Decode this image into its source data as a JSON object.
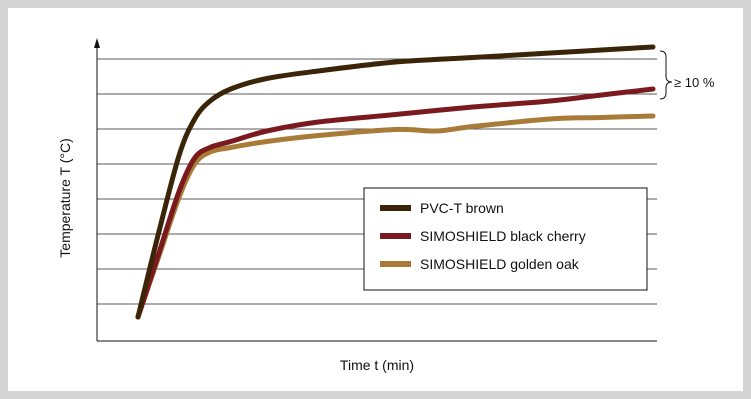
{
  "chart_data": {
    "type": "line",
    "title": "",
    "xlabel": "Time t (min)",
    "ylabel": "Temperature T (°C)",
    "x_ticks_shown": false,
    "y_ticks_shown": false,
    "grid": "horizontal",
    "legend_position": "lower-right",
    "annotation": "≥ 10 %",
    "series": [
      {
        "name": "PVC-T brown",
        "color": "#3a2508",
        "x": [
          0,
          0.04,
          0.08,
          0.11,
          0.14,
          0.18,
          0.25,
          0.35,
          0.5,
          0.65,
          0.8,
          0.9,
          1.0
        ],
        "y": [
          0.2,
          3.0,
          5.6,
          6.8,
          7.4,
          7.8,
          8.15,
          8.4,
          8.7,
          8.85,
          9.0,
          9.1,
          9.2
        ]
      },
      {
        "name": "SIMOSHIELD black cherry",
        "color": "#7a1a1f",
        "x": [
          0,
          0.04,
          0.08,
          0.11,
          0.14,
          0.18,
          0.25,
          0.35,
          0.5,
          0.65,
          0.8,
          0.9,
          1.0
        ],
        "y": [
          0.2,
          2.3,
          4.4,
          5.5,
          5.85,
          6.05,
          6.4,
          6.7,
          6.95,
          7.2,
          7.4,
          7.6,
          7.8
        ]
      },
      {
        "name": "SIMOSHIELD golden oak",
        "color": "#a87c38",
        "x": [
          0,
          0.04,
          0.08,
          0.11,
          0.14,
          0.18,
          0.25,
          0.35,
          0.5,
          0.58,
          0.65,
          0.8,
          0.9,
          1.0
        ],
        "y": [
          0.2,
          2.2,
          4.2,
          5.3,
          5.7,
          5.85,
          6.05,
          6.25,
          6.45,
          6.4,
          6.55,
          6.8,
          6.85,
          6.9
        ]
      }
    ],
    "ylim": [
      0,
      10
    ],
    "xlim": [
      0,
      1
    ]
  }
}
